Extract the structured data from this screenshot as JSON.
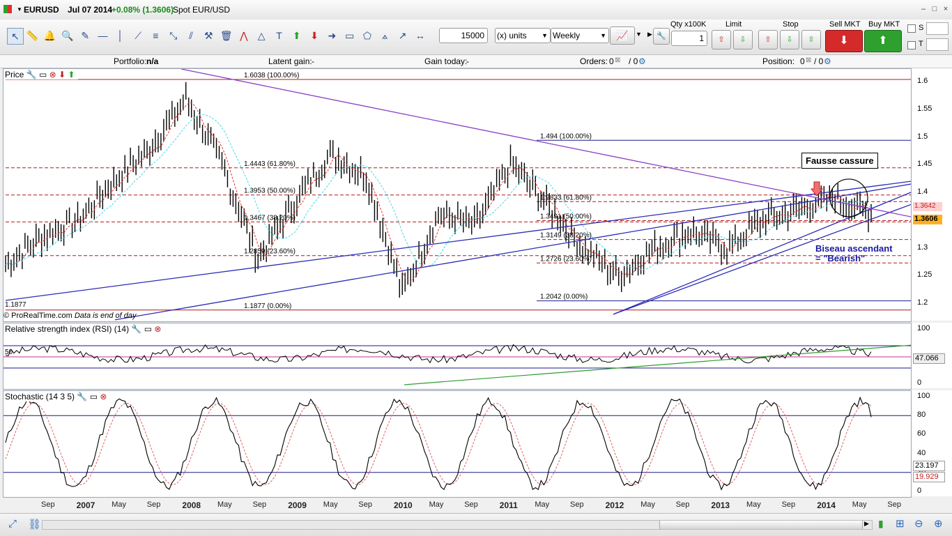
{
  "window": {
    "symbol": "EURUSD",
    "date": "Jul 07 2014",
    "change": "+0.08% (1.3606)",
    "instrument_name": "Spot EUR/USD",
    "controls": [
      "–",
      "□",
      "×"
    ]
  },
  "toolbar": {
    "quantity": "15000",
    "units": "(x) units",
    "timeframe": "Weekly",
    "qty_label": "Qty x100K",
    "qty_value": "1",
    "limit_label": "Limit",
    "stop_label": "Stop",
    "sell_label": "Sell MKT",
    "buy_label": "Buy MKT",
    "s_label": "S",
    "t_label": "T",
    "icons": [
      "cursor-icon",
      "ruler-icon",
      "alarm-icon",
      "zoom-icon",
      "pen-icon",
      "hline-icon",
      "vline-icon",
      "trendlines-icon",
      "fib-icon",
      "arrows-icon",
      "parallel-icon",
      "hammer-icon",
      "trash-icon",
      "zigzag-icon",
      "triangle-icon",
      "text-icon",
      "up-arrow-icon",
      "down-arrow-icon",
      "right-arrow-icon",
      "rectangle-icon",
      "polygon-icon",
      "cone-icon",
      "ray-icon",
      "dist-icon"
    ]
  },
  "infobar": {
    "portfolio_label": "Portfolio:",
    "portfolio_value": "n/a",
    "latent_label": "Latent gain:",
    "latent_value": "-",
    "today_label": "Gain today:",
    "today_value": "-",
    "orders_label": "Orders:",
    "orders_value": "0",
    "orders_sep": "/ 0",
    "position_label": "Position:",
    "position_value": "0",
    "position_sep": "/ 0"
  },
  "price_panel": {
    "title": "Price",
    "copyright": "© ProRealTime.com",
    "data_note": "Data is end of day",
    "y_ticks": [
      "1.6",
      "1.55",
      "1.5",
      "1.45",
      "1.4",
      "1.35",
      "1.3",
      "1.25",
      "1.2"
    ],
    "last_price": "1.3606",
    "price_tag_a": "1.3642",
    "low_left": "1.1877",
    "fib_left": [
      "1.6038 (100.00%)",
      "1.4443 (61.80%)",
      "1.3953 (50.00%)",
      "1.3467 (38.20%)",
      "1.2859 (23.60%)",
      "1.1877 (0.00%)"
    ],
    "fib_right": [
      "1.494 (100.00%)",
      "1.3833 (61.80%)",
      "1.3491 (50.00%)",
      "1.3149 (38.20%)",
      "1.2726 (23.60%)",
      "1.2042 (0.00%)"
    ],
    "annotation_box": "Fausse cassure",
    "annotation_text_1": "Biseau ascendant",
    "annotation_text_2": "= \"Bearish\""
  },
  "rsi_panel": {
    "title": "Relative strength index (RSI) (14)",
    "y_ticks": [
      "100",
      "0"
    ],
    "level": "50",
    "value": "47.066"
  },
  "stoch_panel": {
    "title": "Stochastic (14 3 5)",
    "y_ticks": [
      "100",
      "80",
      "60",
      "40",
      "20",
      "0"
    ],
    "value_k": "23.197",
    "value_d": "19.929"
  },
  "x_axis": [
    {
      "label": "Sep",
      "bold": false
    },
    {
      "label": "2007",
      "bold": true
    },
    {
      "label": "May",
      "bold": false
    },
    {
      "label": "Sep",
      "bold": false
    },
    {
      "label": "2008",
      "bold": true
    },
    {
      "label": "May",
      "bold": false
    },
    {
      "label": "Sep",
      "bold": false
    },
    {
      "label": "2009",
      "bold": true
    },
    {
      "label": "May",
      "bold": false
    },
    {
      "label": "Sep",
      "bold": false
    },
    {
      "label": "2010",
      "bold": true
    },
    {
      "label": "May",
      "bold": false
    },
    {
      "label": "Sep",
      "bold": false
    },
    {
      "label": "2011",
      "bold": true
    },
    {
      "label": "May",
      "bold": false
    },
    {
      "label": "Sep",
      "bold": false
    },
    {
      "label": "2012",
      "bold": true
    },
    {
      "label": "May",
      "bold": false
    },
    {
      "label": "Sep",
      "bold": false
    },
    {
      "label": "2013",
      "bold": true
    },
    {
      "label": "May",
      "bold": false
    },
    {
      "label": "Sep",
      "bold": false
    },
    {
      "label": "2014",
      "bold": true
    },
    {
      "label": "May",
      "bold": false
    },
    {
      "label": "Sep",
      "bold": false
    }
  ],
  "chart_data": {
    "type": "line",
    "title": "EURUSD",
    "x": [
      "2006-09",
      "2007-01",
      "2007-05",
      "2007-09",
      "2008-01",
      "2008-05",
      "2008-09",
      "2009-01",
      "2009-05",
      "2009-09",
      "2010-01",
      "2010-05",
      "2010-09",
      "2011-01",
      "2011-05",
      "2011-09",
      "2012-01",
      "2012-05",
      "2012-09",
      "2013-01",
      "2013-05",
      "2013-09",
      "2014-01",
      "2014-05",
      "2014-07"
    ],
    "series": [
      {
        "name": "EURUSD",
        "values": [
          1.27,
          1.32,
          1.35,
          1.42,
          1.48,
          1.57,
          1.45,
          1.28,
          1.38,
          1.47,
          1.43,
          1.22,
          1.36,
          1.34,
          1.45,
          1.38,
          1.3,
          1.25,
          1.3,
          1.33,
          1.3,
          1.35,
          1.37,
          1.39,
          1.3606
        ]
      }
    ],
    "ylim": [
      1.18,
      1.62
    ],
    "grid": false
  },
  "colors": {
    "up": "#2ea02e",
    "down": "#e03030",
    "fib": "#c01818",
    "trend": "#2b2bb5",
    "wedge": "#8b3fc8",
    "rsi_trend": "#2f9a2f",
    "ma_fast": "#e83030",
    "ma_slow": "#3fd8e8"
  }
}
